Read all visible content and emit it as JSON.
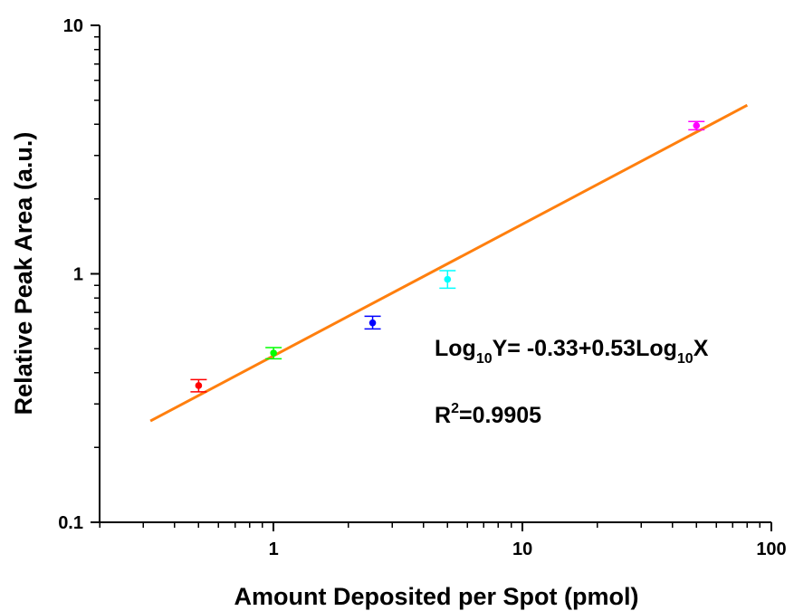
{
  "chart_data": {
    "type": "scatter",
    "title": "",
    "xlabel": "Amount Deposited per Spot (pmol)",
    "ylabel": "Relative Peak Area (a.u.)",
    "xscale": "log",
    "yscale": "log",
    "xlim": [
      0.2,
      100
    ],
    "ylim": [
      0.1,
      10
    ],
    "x_ticks": [
      1,
      10,
      100
    ],
    "x_tick_labels": [
      "1",
      "10",
      "100"
    ],
    "y_ticks": [
      0.1,
      1,
      10
    ],
    "y_tick_labels": [
      "0.1",
      "1",
      "10"
    ],
    "grid": false,
    "legend": "none",
    "points": [
      {
        "x": 0.5,
        "y": 0.355,
        "err_low": 0.335,
        "err_high": 0.375,
        "color": "#ff0000"
      },
      {
        "x": 1,
        "y": 0.48,
        "err_low": 0.455,
        "err_high": 0.505,
        "color": "#00ff00"
      },
      {
        "x": 2.5,
        "y": 0.635,
        "err_low": 0.6,
        "err_high": 0.675,
        "color": "#0000ff"
      },
      {
        "x": 5,
        "y": 0.95,
        "err_low": 0.875,
        "err_high": 1.03,
        "color": "#00ffff"
      },
      {
        "x": 50,
        "y": 3.95,
        "err_low": 3.8,
        "err_high": 4.1,
        "color": "#ff00ff"
      }
    ],
    "fit": {
      "intercept": -0.33,
      "slope": 0.53,
      "x_range": [
        0.32,
        80
      ],
      "color": "#ff7f0e"
    },
    "annotations": {
      "equation": {
        "prefix": "Log",
        "sub1": "10",
        "mid": "Y= -0.33+0.53Log",
        "sub2": "10",
        "suffix": "X"
      },
      "r2": {
        "prefix": "R",
        "sup": "2",
        "suffix": "=0.9905"
      }
    }
  }
}
